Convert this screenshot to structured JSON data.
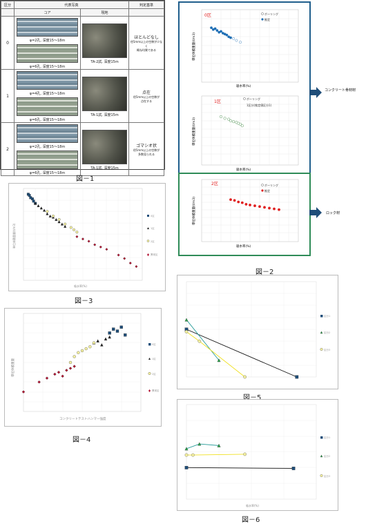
{
  "fig1": {
    "caption": "図－1",
    "headers": [
      "区分",
      "代表写真",
      "判定基準"
    ],
    "subheaders": [
      "コア",
      "現地"
    ],
    "rows": [
      {
        "class": "0",
        "core_text": "φ=2孔, 深度15～18m",
        "core_text2": "φ=6孔, 深度15～18m",
        "field_text": "TA-2試, 深度15m",
        "criterion": "ほとんどなし",
        "note": "径5mm以上の空隙が少なく\n概ね均質である"
      },
      {
        "class": "1",
        "core_text": "φ=4孔, 深度15～18m",
        "core_text2": "φ=6孔, 深度15～18m",
        "field_text": "TA-1試, 深度15m",
        "criterion": "点在",
        "note": "径5mm以上の空隙が\n点在する"
      },
      {
        "class": "2",
        "core_text": "φ=2孔, 深度15～18m",
        "core_text2": "φ=6孔, 深度15～18m",
        "field_text": "TA-1試, 深度15m",
        "criterion": "ゴマシオ状",
        "note": "径5mm以上の空隙が\n多数見られる"
      }
    ]
  },
  "fig2": {
    "caption": "図－2",
    "panels": [
      {
        "tag": "0区",
        "legend": [
          "ボーリング",
          "推定"
        ],
        "ylabel": "単位体積重量(t/m3)",
        "xlabel": "吸水率(%)"
      },
      {
        "tag": "1区",
        "legend": [
          "ボーリング",
          "1区分(推定値区分1)"
        ],
        "ylabel": "単位体積重量(t/m3)",
        "xlabel": "吸水率(%)"
      },
      {
        "tag": "2区",
        "legend": [
          "ボーリング",
          "推定"
        ],
        "ylabel": "単位体積重量(t/m3)",
        "xlabel": "吸水率(%)"
      }
    ],
    "side_labels": [
      "コンクリート骨材材",
      "ロック材"
    ]
  },
  "fig3": {
    "caption": "図－3",
    "xlabel": "吸水率(%)",
    "ylabel": "単位体積重量(t/m3)",
    "legend": [
      "0区",
      "1区",
      "2区",
      "異常区"
    ]
  },
  "fig4": {
    "caption": "図－4",
    "xlabel": "コンクリートテストハンマー強度",
    "ylabel": "単位体積重量",
    "legend": [
      "0区",
      "1区",
      "2区",
      "異常区"
    ]
  },
  "fig5": {
    "caption": "図－5",
    "legend": [
      "区分1",
      "区分2",
      "区分3"
    ]
  },
  "fig6": {
    "caption": "図－6",
    "xlabel": "吸水率(%)",
    "legend": [
      "区分1",
      "区分2",
      "区分3"
    ]
  },
  "colors": {
    "blue_frame": "#1f5e8c",
    "green_frame": "#2e8b57",
    "red": "#e02020",
    "navy": "#1f4e79"
  },
  "chart_data": [
    {
      "type": "scatter",
      "title": "",
      "xlabel": "吸水率(%)",
      "ylabel": "単位体積重量(t/m3)",
      "xlim": [
        0,
        20
      ],
      "ylim": [
        2.0,
        2.8
      ],
      "series": [
        {
          "name": "0区",
          "x": [
            0.8,
            1.0,
            1.2,
            1.5,
            1.7,
            2.0
          ],
          "y": [
            2.75,
            2.74,
            2.72,
            2.71,
            2.69,
            2.67
          ]
        },
        {
          "name": "1区",
          "x": [
            2.0,
            2.5,
            3.0,
            3.5,
            4.0,
            4.5,
            5.0,
            5.5,
            6.0,
            6.5,
            7.0
          ],
          "y": [
            2.67,
            2.65,
            2.63,
            2.61,
            2.58,
            2.56,
            2.55,
            2.53,
            2.51,
            2.49,
            2.47
          ]
        },
        {
          "name": "2区",
          "x": [
            4.0,
            5.0,
            6.0,
            7.0,
            8.0,
            8.5,
            9.0
          ],
          "y": [
            2.6,
            2.56,
            2.53,
            2.49,
            2.46,
            2.44,
            2.42
          ]
        },
        {
          "name": "異常区",
          "x": [
            9.0,
            10.0,
            11.0,
            12.0,
            13.0,
            14.0,
            16.0,
            17.0,
            18.0,
            19.0
          ],
          "y": [
            2.38,
            2.36,
            2.34,
            2.31,
            2.29,
            2.27,
            2.22,
            2.19,
            2.15,
            2.12
          ]
        }
      ]
    },
    {
      "type": "scatter",
      "xlabel": "コンクリートテストハンマー強度",
      "ylabel": "",
      "xlim": [
        0,
        60
      ],
      "ylim": [
        0,
        100
      ],
      "series": [
        {
          "name": "0区",
          "x": [
            44,
            46,
            48,
            50,
            52
          ],
          "y": [
            80,
            84,
            82,
            86,
            78
          ]
        },
        {
          "name": "1区",
          "x": [
            36,
            38,
            40,
            42,
            44
          ],
          "y": [
            70,
            72,
            68,
            74,
            76
          ]
        },
        {
          "name": "2区",
          "x": [
            24,
            26,
            28,
            30,
            32,
            34,
            36
          ],
          "y": [
            50,
            56,
            60,
            62,
            64,
            66,
            70
          ]
        },
        {
          "name": "異常区",
          "x": [
            0,
            8,
            12,
            16,
            18,
            20,
            22,
            24,
            26
          ],
          "y": [
            20,
            30,
            34,
            38,
            40,
            36,
            42,
            44,
            46
          ]
        }
      ]
    },
    {
      "type": "line",
      "xlim": [
        0,
        40
      ],
      "ylim": [
        0,
        80
      ],
      "series": [
        {
          "name": "区分1",
          "x": [
            0,
            34
          ],
          "y": [
            40,
            0
          ]
        },
        {
          "name": "区分2",
          "x": [
            0,
            10
          ],
          "y": [
            48,
            14
          ]
        },
        {
          "name": "区分3",
          "x": [
            0,
            4,
            18
          ],
          "y": [
            38,
            30,
            0
          ]
        }
      ]
    },
    {
      "type": "line",
      "xlim": [
        0,
        40
      ],
      "ylim": [
        0,
        600
      ],
      "series": [
        {
          "name": "区分1",
          "x": [
            0,
            33
          ],
          "y": [
            200,
            195
          ]
        },
        {
          "name": "区分2",
          "x": [
            0,
            4,
            10
          ],
          "y": [
            320,
            350,
            340
          ]
        },
        {
          "name": "区分3",
          "x": [
            0,
            2,
            18
          ],
          "y": [
            280,
            280,
            285
          ]
        }
      ]
    }
  ]
}
